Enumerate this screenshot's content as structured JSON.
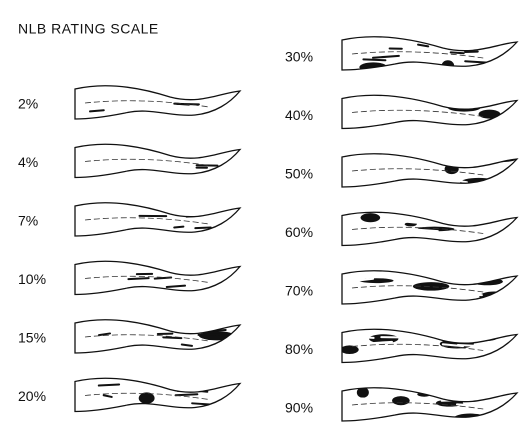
{
  "title": "NLB RATING SCALE",
  "left_levels": [
    "2%",
    "4%",
    "7%",
    "10%",
    "15%",
    "20%"
  ],
  "right_levels": [
    "30%",
    "40%",
    "50%",
    "60%",
    "70%",
    "80%",
    "90%"
  ]
}
